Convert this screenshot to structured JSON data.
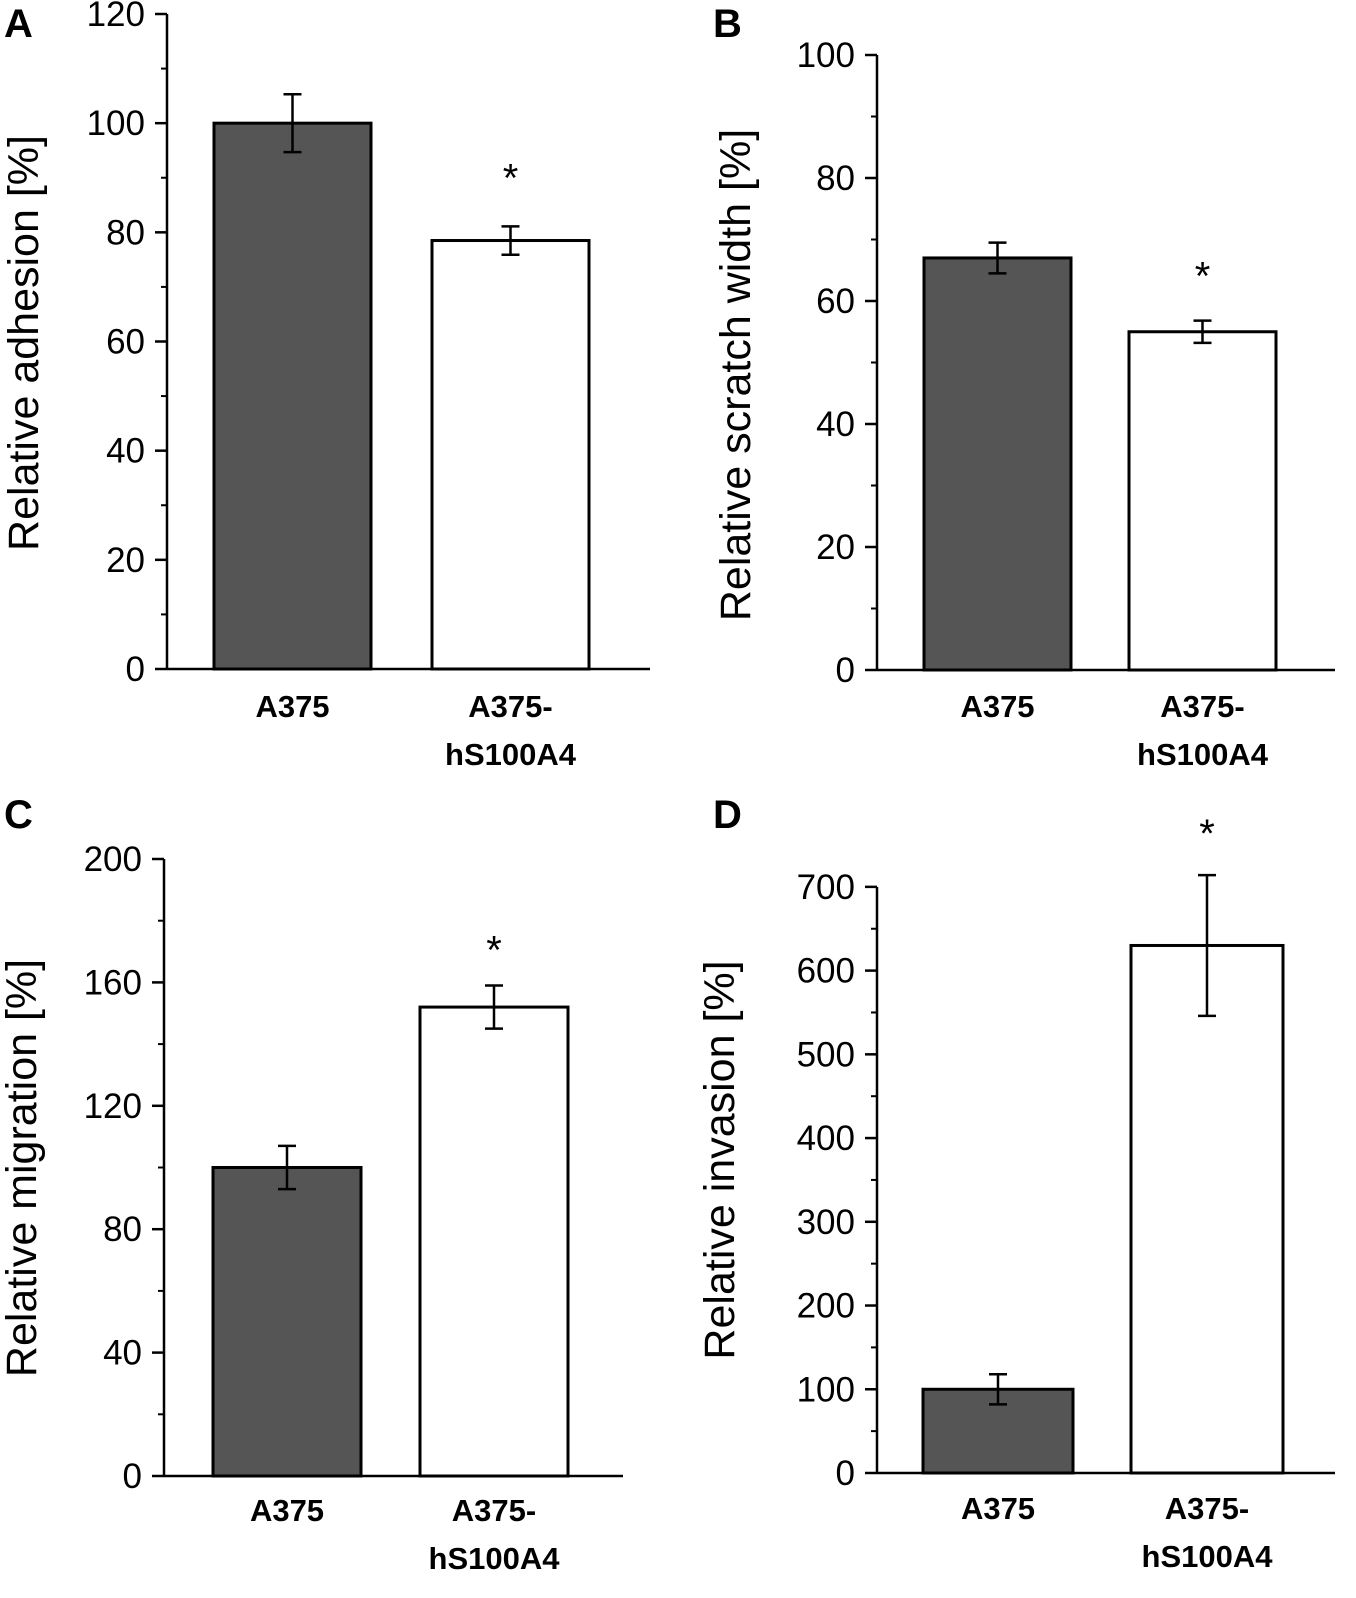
{
  "chart_data": [
    {
      "type": "bar",
      "panel": "A",
      "ylabel": "Relative adhesion [%]",
      "ylim": [
        0,
        120
      ],
      "yticks": [
        0,
        20,
        40,
        60,
        80,
        100,
        120
      ],
      "categories": [
        [
          "A375"
        ],
        [
          "A375-",
          "hS100A4"
        ]
      ],
      "values": [
        100,
        78.5
      ],
      "errors": [
        5.3,
        2.6
      ],
      "colors": [
        "#555555",
        "#ffffff"
      ],
      "significance": [
        "",
        "*"
      ]
    },
    {
      "type": "bar",
      "panel": "B",
      "ylabel": "Relative scratch width [%]",
      "ylim": [
        0,
        100
      ],
      "yticks": [
        0,
        20,
        40,
        60,
        80,
        100
      ],
      "categories": [
        [
          "A375"
        ],
        [
          "A375-",
          "hS100A4"
        ]
      ],
      "values": [
        67,
        55
      ],
      "errors": [
        2.5,
        1.8
      ],
      "colors": [
        "#555555",
        "#ffffff"
      ],
      "significance": [
        "",
        "*"
      ]
    },
    {
      "type": "bar",
      "panel": "C",
      "ylabel": "Relative migration [%]",
      "ylim": [
        0,
        200
      ],
      "yticks": [
        0,
        40,
        80,
        120,
        160,
        200
      ],
      "categories": [
        [
          "A375"
        ],
        [
          "A375-",
          "hS100A4"
        ]
      ],
      "values": [
        100,
        152
      ],
      "errors": [
        7,
        7
      ],
      "colors": [
        "#555555",
        "#ffffff"
      ],
      "significance": [
        "",
        "*"
      ]
    },
    {
      "type": "bar",
      "panel": "D",
      "ylabel": "Relative invasion [%]",
      "ylim": [
        0,
        750
      ],
      "yticks": [
        0,
        100,
        200,
        300,
        400,
        500,
        600,
        700
      ],
      "categories": [
        [
          "A375"
        ],
        [
          "A375-",
          "hS100A4"
        ]
      ],
      "values": [
        100,
        630
      ],
      "errors": [
        18,
        84
      ],
      "colors": [
        "#555555",
        "#ffffff"
      ],
      "significance": [
        "",
        "*"
      ]
    }
  ]
}
